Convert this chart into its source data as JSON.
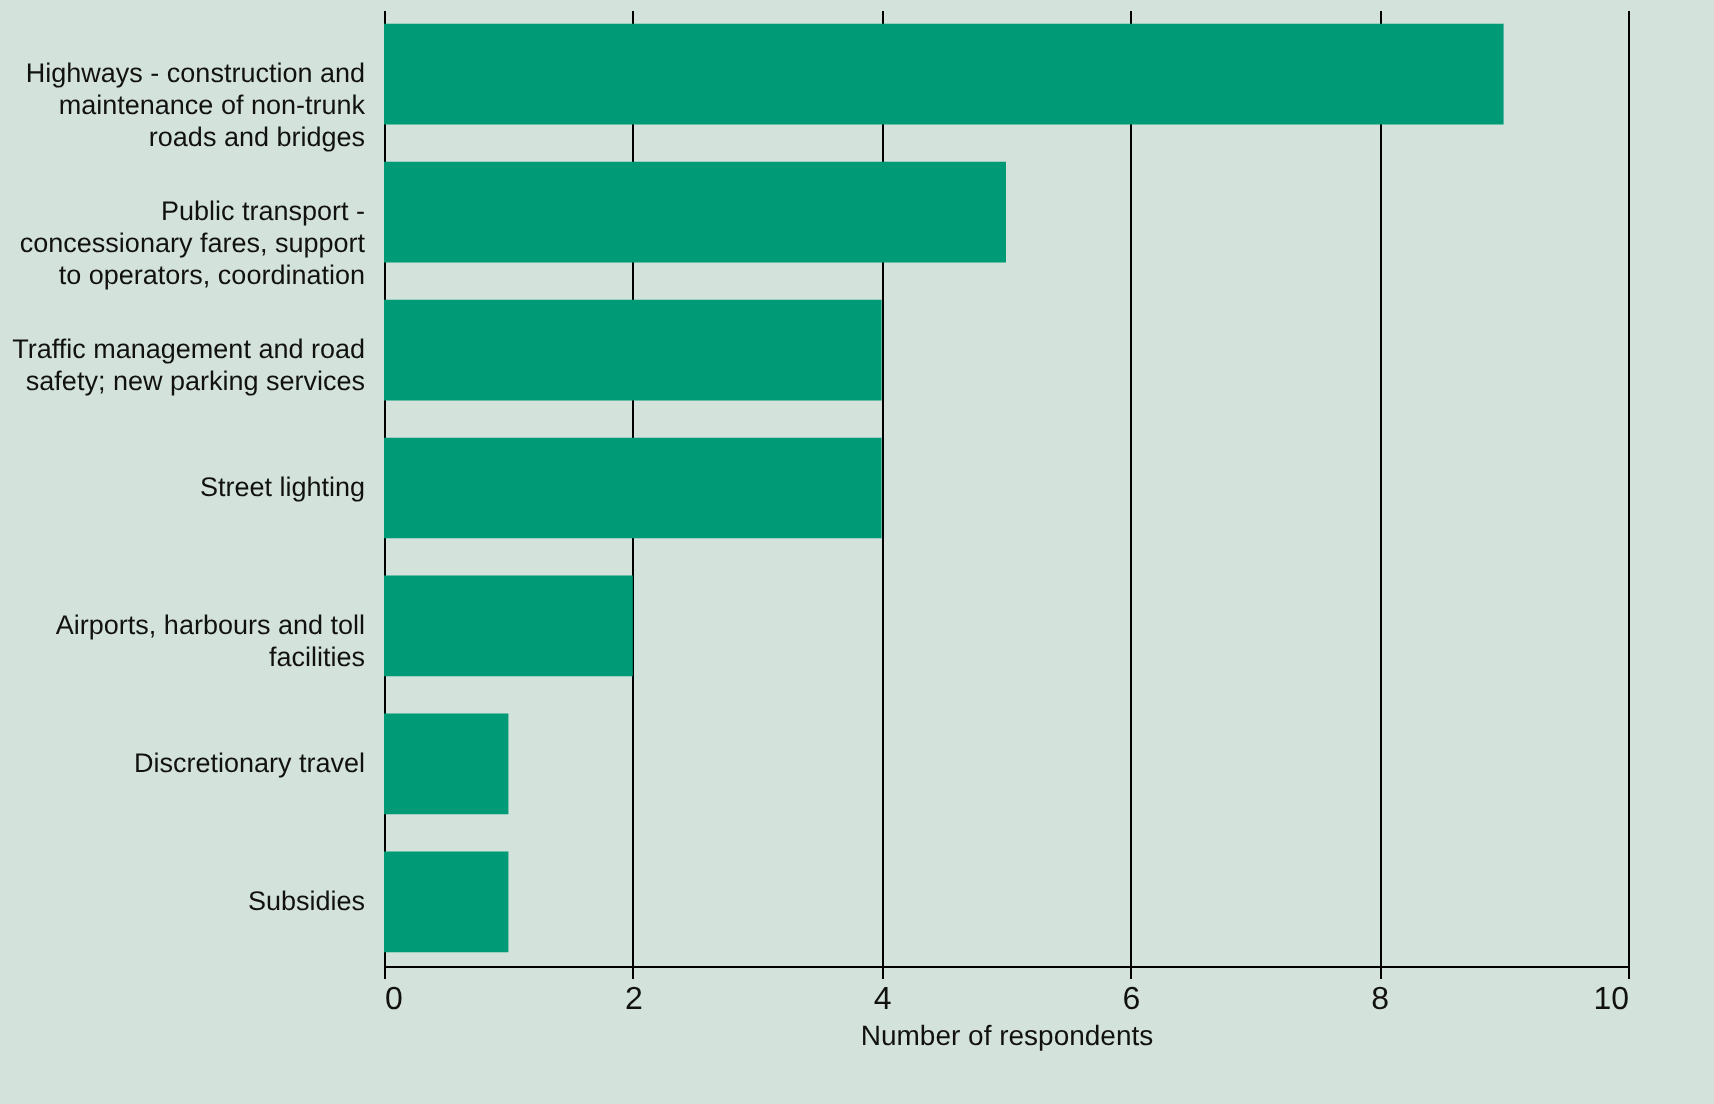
{
  "chart_data": {
    "type": "bar",
    "orientation": "horizontal",
    "xlabel": "Number of respondents",
    "categories": [
      "Highways - construction and maintenance of non-trunk roads and bridges",
      "Public transport - concessionary fares, support to operators, coordination",
      "Traffic management and road safety; new parking services",
      "Street lighting",
      "Airports, harbours and toll facilities",
      "Discretionary travel",
      "Subsidies"
    ],
    "values": [
      9,
      5,
      4,
      4,
      2,
      1,
      1
    ],
    "color": "#009a77",
    "xlim": [
      0,
      10
    ],
    "xticks": [
      0,
      2,
      4,
      6,
      8,
      10
    ],
    "grid": "x"
  }
}
